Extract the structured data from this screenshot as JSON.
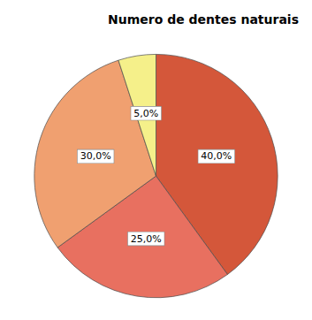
{
  "chart_data": {
    "type": "pie",
    "title": "Numero de dentes naturais",
    "values": [
      40.0,
      25.0,
      30.0,
      5.0
    ],
    "value_labels": [
      "40,0%",
      "25,0%",
      "30,0%",
      "5,0%"
    ],
    "colors": [
      "#D4573A",
      "#E87060",
      "#F0A070",
      "#F5F08A"
    ],
    "data_labels": true
  }
}
